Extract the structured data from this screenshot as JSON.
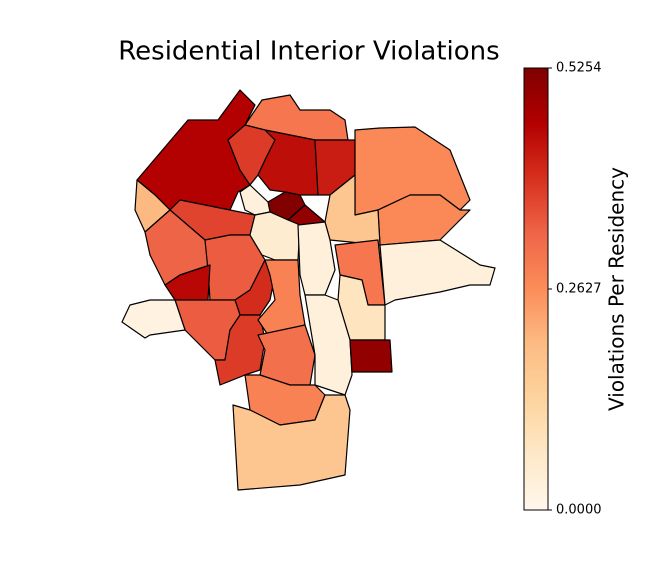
{
  "chart_data": {
    "type": "choropleth",
    "title": "Residential Interior Violations",
    "colorbar_label": "Violations Per Residency",
    "clim": [
      0,
      0.5254
    ],
    "cticks": [
      {
        "value": 0,
        "label": "0.0000"
      },
      {
        "value": 0.2627,
        "label": "0.2627"
      },
      {
        "value": 0.5254,
        "label": "0.5254"
      }
    ],
    "cmap": [
      "#fff7ec",
      "#fee8c8",
      "#fdd49e",
      "#fdbb84",
      "#fc8d59",
      "#ef6548",
      "#d7301f",
      "#b30000",
      "#7f0000"
    ],
    "values": [
      0.46,
      0.3,
      0.38,
      0.44,
      0.42,
      0.27,
      0.27,
      0.52,
      0.5,
      0.17,
      0.03,
      0.2,
      0.37,
      0.33,
      0.34,
      0.45,
      0.4,
      0.34,
      0.38,
      0.05,
      0.03,
      0.28,
      0.31,
      0.3,
      0.08,
      0.03,
      0.5,
      0.03,
      0.28,
      0.17,
      0.02
    ]
  }
}
